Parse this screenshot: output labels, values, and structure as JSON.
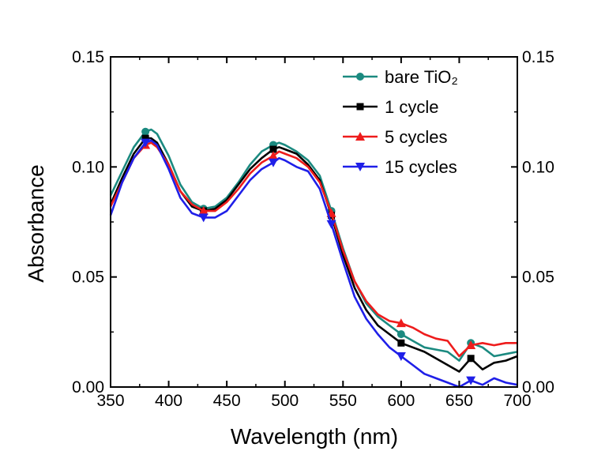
{
  "chart_data": {
    "type": "line",
    "title": "",
    "xlabel": "Wavelength (nm)",
    "ylabel": "Absorbance",
    "xlim": [
      350,
      700
    ],
    "ylim": [
      0,
      0.15
    ],
    "x_ticks": [
      "350",
      "400",
      "450",
      "500",
      "550",
      "600",
      "650",
      "700"
    ],
    "y_ticks": [
      "0.00",
      "0.05",
      "0.10",
      "0.15"
    ],
    "right_axis_ticks": [
      "0.00",
      "0.05",
      "0.10",
      "0.15"
    ],
    "grid": false,
    "legend_position": "top-right",
    "series": [
      {
        "name": "bare TiO₂",
        "color": "#1b8a80",
        "marker": "circle",
        "x": [
          350,
          360,
          370,
          380,
          385,
          390,
          400,
          410,
          420,
          430,
          440,
          450,
          460,
          470,
          480,
          490,
          495,
          500,
          510,
          520,
          530,
          540,
          550,
          560,
          570,
          580,
          590,
          600,
          610,
          620,
          630,
          640,
          650,
          660,
          670,
          680,
          690,
          700
        ],
        "y": [
          0.087,
          0.098,
          0.109,
          0.116,
          0.117,
          0.115,
          0.105,
          0.092,
          0.084,
          0.081,
          0.082,
          0.086,
          0.093,
          0.101,
          0.107,
          0.11,
          0.111,
          0.11,
          0.107,
          0.103,
          0.096,
          0.08,
          0.063,
          0.048,
          0.038,
          0.032,
          0.028,
          0.024,
          0.021,
          0.018,
          0.017,
          0.016,
          0.012,
          0.02,
          0.018,
          0.014,
          0.015,
          0.016
        ]
      },
      {
        "name": "1 cycle",
        "color": "#000000",
        "marker": "square",
        "x": [
          350,
          360,
          370,
          380,
          385,
          390,
          400,
          410,
          420,
          430,
          440,
          450,
          460,
          470,
          480,
          490,
          495,
          500,
          510,
          520,
          530,
          540,
          550,
          560,
          570,
          580,
          590,
          600,
          610,
          620,
          630,
          640,
          650,
          660,
          670,
          680,
          690,
          700
        ],
        "y": [
          0.083,
          0.095,
          0.106,
          0.113,
          0.113,
          0.111,
          0.101,
          0.089,
          0.082,
          0.08,
          0.081,
          0.085,
          0.092,
          0.099,
          0.104,
          0.108,
          0.109,
          0.108,
          0.106,
          0.101,
          0.094,
          0.078,
          0.06,
          0.045,
          0.035,
          0.028,
          0.024,
          0.02,
          0.018,
          0.016,
          0.013,
          0.01,
          0.007,
          0.013,
          0.008,
          0.011,
          0.012,
          0.014
        ]
      },
      {
        "name": "5 cycles",
        "color": "#ee1c1c",
        "marker": "triangle-up",
        "x": [
          350,
          360,
          370,
          380,
          385,
          390,
          400,
          410,
          420,
          430,
          440,
          450,
          460,
          470,
          480,
          490,
          495,
          500,
          510,
          520,
          530,
          540,
          550,
          560,
          570,
          580,
          590,
          600,
          610,
          620,
          630,
          640,
          650,
          660,
          670,
          680,
          690,
          700
        ],
        "y": [
          0.082,
          0.093,
          0.104,
          0.11,
          0.111,
          0.109,
          0.101,
          0.089,
          0.083,
          0.08,
          0.08,
          0.084,
          0.09,
          0.097,
          0.102,
          0.105,
          0.107,
          0.106,
          0.104,
          0.1,
          0.093,
          0.079,
          0.062,
          0.048,
          0.039,
          0.033,
          0.03,
          0.029,
          0.027,
          0.024,
          0.022,
          0.021,
          0.014,
          0.019,
          0.02,
          0.019,
          0.02,
          0.02
        ]
      },
      {
        "name": "15 cycles",
        "color": "#1f1fe8",
        "marker": "triangle-down",
        "x": [
          350,
          360,
          370,
          380,
          385,
          390,
          400,
          410,
          420,
          430,
          440,
          450,
          460,
          470,
          480,
          490,
          495,
          500,
          510,
          520,
          530,
          540,
          550,
          560,
          570,
          580,
          590,
          600,
          610,
          620,
          630,
          640,
          650,
          660,
          670,
          680,
          690,
          700
        ],
        "y": [
          0.078,
          0.093,
          0.104,
          0.111,
          0.112,
          0.11,
          0.099,
          0.086,
          0.079,
          0.077,
          0.077,
          0.08,
          0.087,
          0.094,
          0.099,
          0.102,
          0.104,
          0.103,
          0.1,
          0.098,
          0.09,
          0.074,
          0.057,
          0.041,
          0.031,
          0.024,
          0.018,
          0.014,
          0.01,
          0.006,
          0.004,
          0.002,
          0.0,
          0.003,
          0.001,
          0.004,
          0.002,
          0.001
        ]
      }
    ]
  }
}
